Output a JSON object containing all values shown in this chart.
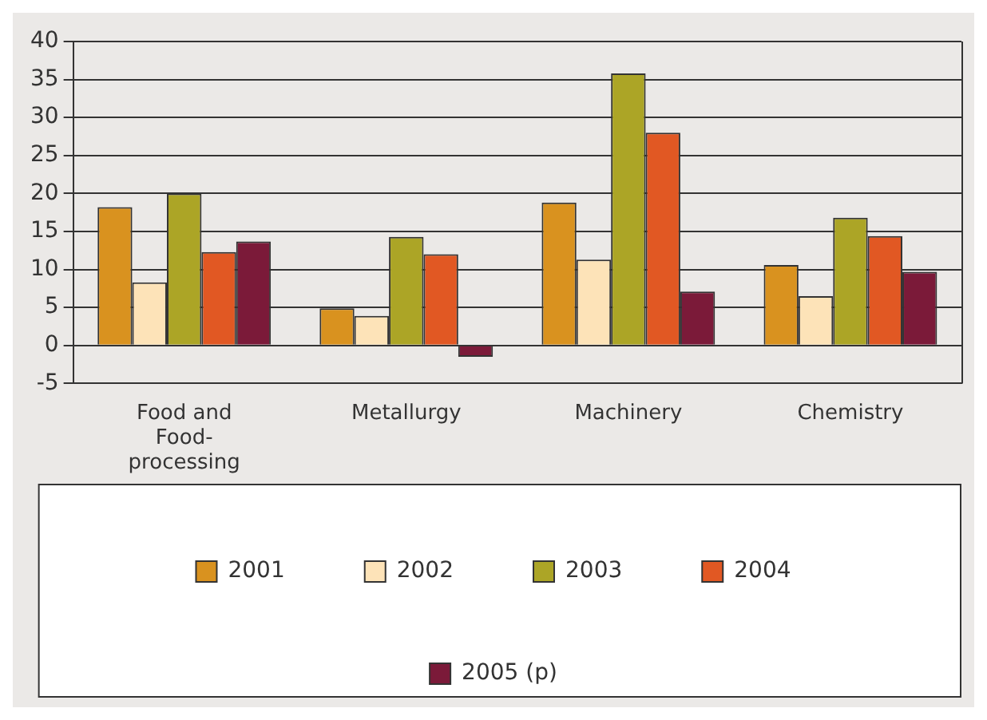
{
  "chart_data": {
    "type": "bar",
    "categories": [
      "Food and Food-processing",
      "Metallurgy",
      "Machinery",
      "Chemistry"
    ],
    "series": [
      {
        "name": "2001",
        "color": "#d9921f",
        "values": [
          18.2,
          4.9,
          18.8,
          10.6
        ]
      },
      {
        "name": "2002",
        "color": "#fde3b8",
        "values": [
          8.3,
          3.9,
          11.3,
          6.5
        ]
      },
      {
        "name": "2003",
        "color": "#aca526",
        "values": [
          20.0,
          14.3,
          35.8,
          16.8
        ]
      },
      {
        "name": "2004",
        "color": "#e15823",
        "values": [
          12.3,
          12.0,
          28.0,
          14.4
        ]
      },
      {
        "name": "2005 (p)",
        "color": "#7b1a39",
        "values": [
          13.7,
          -1.5,
          7.1,
          9.7
        ]
      }
    ],
    "ylim": [
      -5,
      40
    ],
    "yticks": [
      -5,
      0,
      5,
      10,
      15,
      20,
      25,
      30,
      35,
      40
    ],
    "grid": "y",
    "legend": "bottom"
  }
}
